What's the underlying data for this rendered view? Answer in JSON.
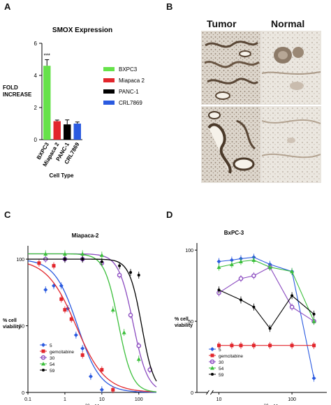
{
  "panels": {
    "a": "A",
    "b": "B",
    "c": "C",
    "d": "D"
  },
  "histology": {
    "col_tumor": "Tumor",
    "col_normal": "Normal"
  },
  "chart_data": [
    {
      "panel": "A",
      "type": "bar",
      "title": "SMOX Expression",
      "xlabel": "Cell Type",
      "ylabel": "FOLD INCREASE",
      "ylim": [
        0,
        6
      ],
      "yticks": [
        "0",
        "2",
        "4",
        "6"
      ],
      "categories": [
        "BXPC3",
        "Miapaca 2",
        "PANC-1",
        "CRL7869"
      ],
      "values": [
        4.6,
        1.15,
        0.95,
        1.0
      ],
      "errors": [
        0.38,
        0.07,
        0.28,
        0.1
      ],
      "colors": [
        "#66e24a",
        "#e2262c",
        "#000000",
        "#2a5ae0"
      ],
      "annotations": [
        {
          "category": "BXPC3",
          "text": "***"
        }
      ],
      "legend": [
        "BXPC3",
        "Miapaca 2",
        "PANC-1",
        "CRL7869"
      ],
      "legend_position": "right",
      "grid": false
    },
    {
      "panel": "C",
      "type": "scatter",
      "title": "Miapaca-2",
      "xlabel": "[I], uM",
      "ylabel": "% cell viability",
      "xscale": "log",
      "xlim": [
        0.1,
        300
      ],
      "ylim": [
        0,
        110
      ],
      "xticks": [
        "0.1",
        "1",
        "10",
        "100"
      ],
      "yticks": [
        "0",
        "50",
        "100"
      ],
      "legend_position": "bottom-left",
      "grid": false,
      "series": [
        {
          "name": "5",
          "color": "#2a5ae0",
          "marker": "diamond",
          "curve_ic50": 2.2,
          "curve_hill": 1.4,
          "curve_top": 100,
          "x": [
            0.3,
            0.5,
            0.8,
            1.2,
            2.0,
            3.0,
            5.0,
            10.0
          ],
          "y": [
            77,
            80,
            80,
            63,
            43,
            33,
            12,
            2
          ]
        },
        {
          "name": "gemcitabine",
          "color": "#e2262c",
          "marker": "square",
          "curve_ic50": 2.0,
          "curve_hill": 1.1,
          "curve_top": 100,
          "x": [
            0.2,
            0.5,
            0.8,
            1.0,
            1.5,
            3.0,
            10.0,
            20.0
          ],
          "y": [
            97,
            95,
            70,
            62,
            55,
            28,
            17,
            2
          ]
        },
        {
          "name": "30",
          "color": "#8b4bc0",
          "marker": "circle",
          "curve_ic50": 70,
          "curve_hill": 2.2,
          "curve_top": 104,
          "x": [
            0.3,
            1.0,
            3.0,
            10.0,
            30.0,
            60.0,
            100.0,
            200.0
          ],
          "y": [
            100,
            100,
            100,
            97,
            88,
            58,
            35,
            17
          ]
        },
        {
          "name": "54",
          "color": "#3bbf3b",
          "marker": "triangle",
          "curve_ic50": 28,
          "curve_hill": 2.3,
          "curve_top": 104,
          "x": [
            0.3,
            1.0,
            3.0,
            10.0,
            20.0,
            40.0,
            100.0
          ],
          "y": [
            104,
            104,
            104,
            103,
            62,
            45,
            25
          ]
        },
        {
          "name": "59",
          "color": "#000000",
          "marker": "dot",
          "curve_ic50": 120,
          "curve_hill": 2.6,
          "curve_top": 100,
          "x": [
            1.0,
            3.0,
            10.0,
            30.0,
            60.0,
            100.0
          ],
          "y": [
            100,
            100,
            98,
            95,
            90,
            88
          ]
        }
      ]
    },
    {
      "panel": "D",
      "type": "scatter",
      "title": "BxPC-3",
      "xlabel": "[I], uM",
      "ylabel": "% cell viability",
      "xscale": "log",
      "xlim": [
        5,
        300
      ],
      "ylim": [
        0,
        105
      ],
      "xticks": [
        "10",
        "100"
      ],
      "yticks": [
        "0",
        "50",
        "100"
      ],
      "axis_break": "x",
      "legend_position": "bottom-left",
      "grid": false,
      "series": [
        {
          "name": "5",
          "color": "#2a5ae0",
          "marker": "diamond",
          "x": [
            10,
            15,
            20,
            30,
            50,
            100,
            200
          ],
          "y": [
            92,
            93,
            94,
            95,
            90,
            85,
            10
          ]
        },
        {
          "name": "gemcitabine",
          "color": "#e2262c",
          "marker": "square",
          "x": [
            10,
            15,
            20,
            30,
            50,
            100,
            200
          ],
          "y": [
            33,
            33,
            33,
            33,
            33,
            33,
            33
          ]
        },
        {
          "name": "30",
          "color": "#8b4bc0",
          "marker": "circle",
          "x": [
            10,
            20,
            30,
            50,
            100,
            200
          ],
          "y": [
            70,
            80,
            82,
            88,
            60,
            50
          ]
        },
        {
          "name": "54",
          "color": "#3bbf3b",
          "marker": "triangle",
          "x": [
            10,
            15,
            20,
            30,
            50,
            100,
            200
          ],
          "y": [
            88,
            90,
            92,
            93,
            88,
            85,
            50
          ]
        },
        {
          "name": "59",
          "color": "#000000",
          "marker": "dot",
          "x": [
            10,
            20,
            30,
            50,
            100,
            200
          ],
          "y": [
            72,
            65,
            60,
            45,
            68,
            55
          ]
        }
      ]
    }
  ]
}
